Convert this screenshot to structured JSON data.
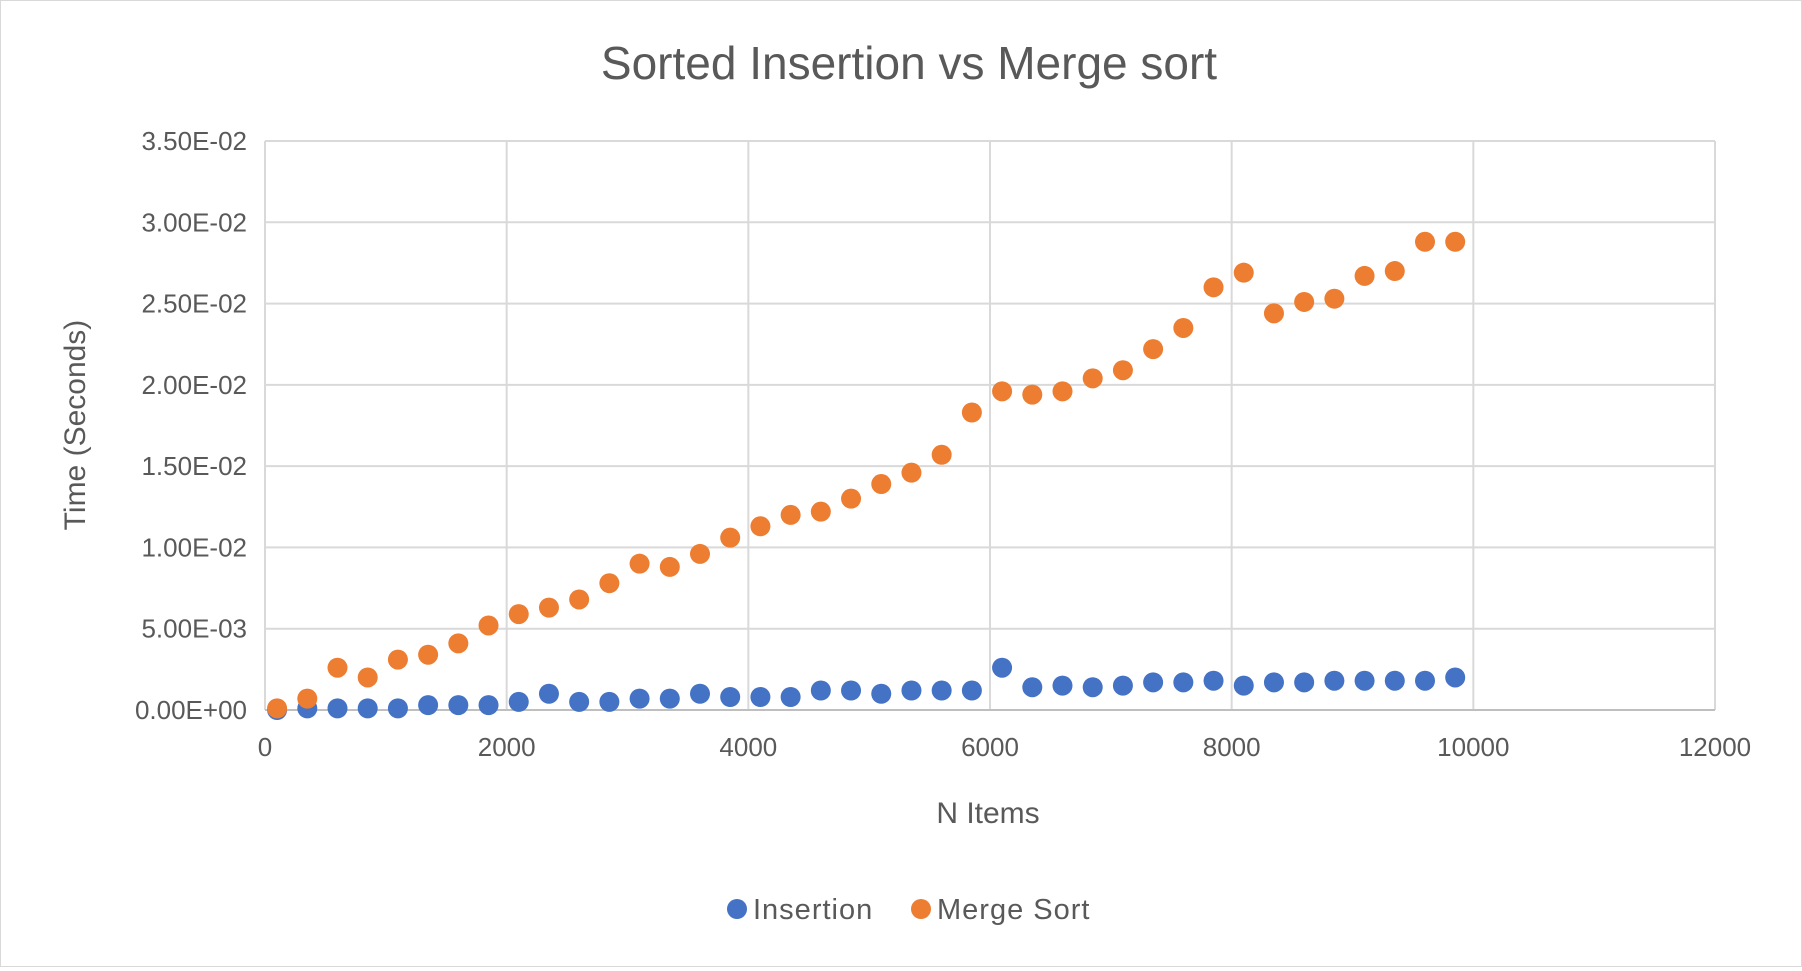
{
  "chart_data": {
    "type": "scatter",
    "title": "Sorted Insertion vs Merge sort",
    "xlabel": "N Items",
    "ylabel": "Time (Seconds)",
    "xlim": [
      0,
      12000
    ],
    "ylim": [
      0,
      0.035
    ],
    "x_ticks": [
      "0",
      "2000",
      "4000",
      "6000",
      "8000",
      "10000",
      "12000"
    ],
    "y_ticks": [
      "0.00E+00",
      "5.00E-03",
      "1.00E-02",
      "1.50E-02",
      "2.00E-02",
      "2.50E-02",
      "3.00E-02",
      "3.50E-02"
    ],
    "grid": true,
    "legend_position": "bottom",
    "x": [
      100,
      350,
      600,
      850,
      1100,
      1350,
      1600,
      1850,
      2100,
      2350,
      2600,
      2850,
      3100,
      3350,
      3600,
      3850,
      4100,
      4350,
      4600,
      4850,
      5100,
      5350,
      5600,
      5850,
      6100,
      6350,
      6600,
      6850,
      7100,
      7350,
      7600,
      7850,
      8100,
      8350,
      8600,
      8850,
      9100,
      9350,
      9600,
      9850
    ],
    "series": [
      {
        "name": "Insertion",
        "color": "#4472c4",
        "values": [
          0.0,
          0.0001,
          0.0001,
          0.0001,
          0.0001,
          0.0003,
          0.0003,
          0.0003,
          0.0005,
          0.001,
          0.0005,
          0.0005,
          0.0007,
          0.0007,
          0.001,
          0.0008,
          0.0008,
          0.0008,
          0.0012,
          0.0012,
          0.001,
          0.0012,
          0.0012,
          0.0012,
          0.0026,
          0.0014,
          0.0015,
          0.0014,
          0.0015,
          0.0017,
          0.0017,
          0.0018,
          0.0015,
          0.0017,
          0.0017,
          0.0018,
          0.0018,
          0.0018,
          0.0018,
          0.002
        ]
      },
      {
        "name": "Merge Sort",
        "color": "#ed7d31",
        "values": [
          0.0001,
          0.0007,
          0.0026,
          0.002,
          0.0031,
          0.0034,
          0.0041,
          0.0052,
          0.0059,
          0.0063,
          0.0068,
          0.0078,
          0.009,
          0.0088,
          0.0096,
          0.0106,
          0.0113,
          0.012,
          0.0122,
          0.013,
          0.0139,
          0.0146,
          0.0157,
          0.0183,
          0.0196,
          0.0194,
          0.0196,
          0.0204,
          0.0209,
          0.0222,
          0.0235,
          0.026,
          0.0269,
          0.0244,
          0.0251,
          0.0253,
          0.0267,
          0.027,
          0.0288,
          0.0288
        ]
      }
    ]
  }
}
